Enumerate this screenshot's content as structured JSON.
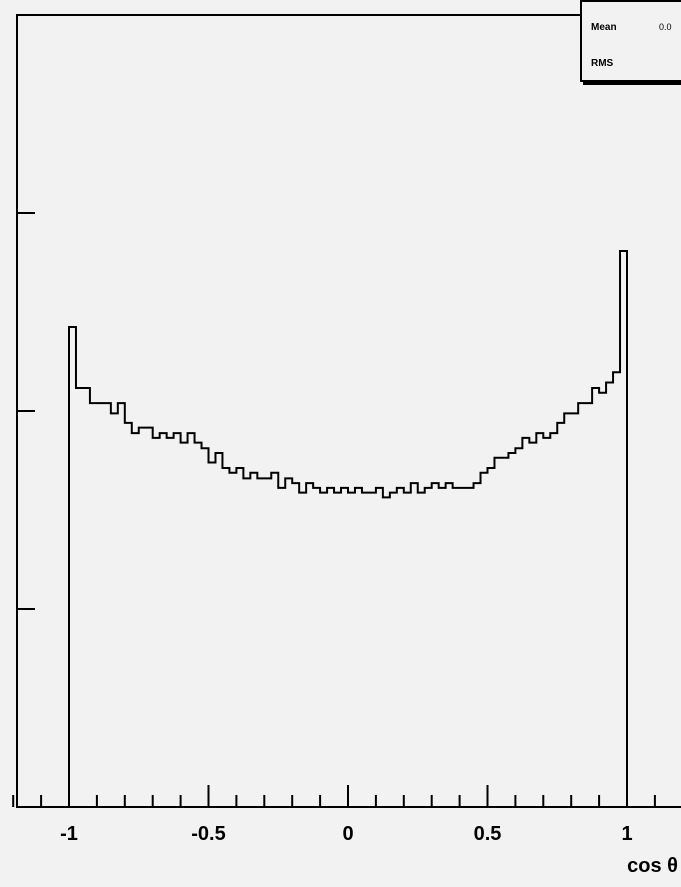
{
  "chart_data": {
    "type": "histogram",
    "xlabel": "cos θ",
    "xlim": [
      -1.2,
      1.2
    ],
    "xtick_labels": [
      "-1",
      "-0.5",
      "0",
      "0.5",
      "1"
    ],
    "xtick_values": [
      -1,
      -0.5,
      0,
      0.5,
      1
    ],
    "ylim": [
      0,
      1.0
    ],
    "ytick_values": [
      0.25,
      0.5,
      0.75,
      1.0
    ],
    "bin_edges_range": [
      -1,
      1
    ],
    "nbins": 80,
    "values": [
      0.606,
      0.529,
      0.529,
      0.51,
      0.51,
      0.51,
      0.497,
      0.51,
      0.485,
      0.472,
      0.479,
      0.479,
      0.466,
      0.472,
      0.466,
      0.472,
      0.46,
      0.472,
      0.46,
      0.453,
      0.435,
      0.447,
      0.428,
      0.422,
      0.428,
      0.415,
      0.422,
      0.415,
      0.415,
      0.422,
      0.403,
      0.415,
      0.409,
      0.397,
      0.409,
      0.403,
      0.397,
      0.403,
      0.397,
      0.403,
      0.397,
      0.403,
      0.397,
      0.397,
      0.403,
      0.391,
      0.397,
      0.403,
      0.397,
      0.409,
      0.397,
      0.403,
      0.409,
      0.403,
      0.409,
      0.403,
      0.403,
      0.403,
      0.409,
      0.422,
      0.428,
      0.441,
      0.441,
      0.447,
      0.453,
      0.466,
      0.46,
      0.472,
      0.466,
      0.472,
      0.485,
      0.497,
      0.497,
      0.51,
      0.51,
      0.529,
      0.523,
      0.536,
      0.549,
      0.702
    ]
  },
  "stats": {
    "mean_label": "Mean",
    "mean_value": "0.0",
    "rms_label": "RMS"
  },
  "colors": {
    "background": "#f2f2f2",
    "line": "#000000"
  }
}
